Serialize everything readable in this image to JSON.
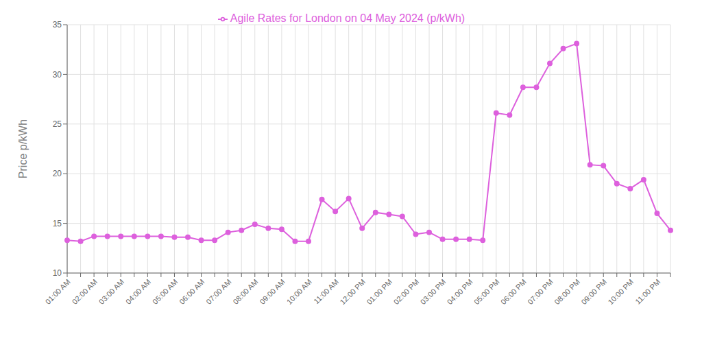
{
  "chart_data": {
    "type": "line",
    "ylabel": "Price p/kWh",
    "categories": [
      "01:00 AM",
      null,
      "02:00 AM",
      null,
      "03:00 AM",
      null,
      "04:00 AM",
      null,
      "05:00 AM",
      null,
      "06:00 AM",
      null,
      "07:00 AM",
      null,
      "08:00 AM",
      null,
      "09:00 AM",
      null,
      "10:00 AM",
      null,
      "11:00 AM",
      null,
      "12:00 PM",
      null,
      "01:00 PM",
      null,
      "02:00 PM",
      null,
      "03:00 PM",
      null,
      "04:00 PM",
      null,
      "05:00 PM",
      null,
      "06:00 PM",
      null,
      "07:00 PM",
      null,
      "08:00 PM",
      null,
      "09:00 PM",
      null,
      "10:00 PM",
      null,
      "11:00 PM",
      null
    ],
    "series": [
      {
        "name": "Agile Rates for London on 04 May 2024 (p/kWh)",
        "color": "#dd60dd",
        "marker": "circle",
        "values": [
          13.3,
          13.2,
          13.7,
          13.7,
          13.7,
          13.7,
          13.7,
          13.7,
          13.6,
          13.6,
          13.3,
          13.3,
          14.1,
          14.3,
          14.9,
          14.5,
          14.4,
          13.2,
          13.2,
          17.4,
          16.2,
          17.5,
          14.5,
          16.1,
          15.9,
          15.7,
          13.9,
          14.1,
          13.4,
          13.4,
          13.4,
          13.3,
          26.1,
          25.9,
          28.7,
          28.7,
          31.1,
          32.6,
          33.1,
          20.9,
          20.8,
          19.0,
          18.5,
          19.4,
          16.0,
          14.3
        ]
      }
    ],
    "ylim": [
      10,
      35
    ],
    "yticks": [
      10,
      15,
      20,
      25,
      30,
      35
    ],
    "grid": true,
    "legend": "top"
  }
}
